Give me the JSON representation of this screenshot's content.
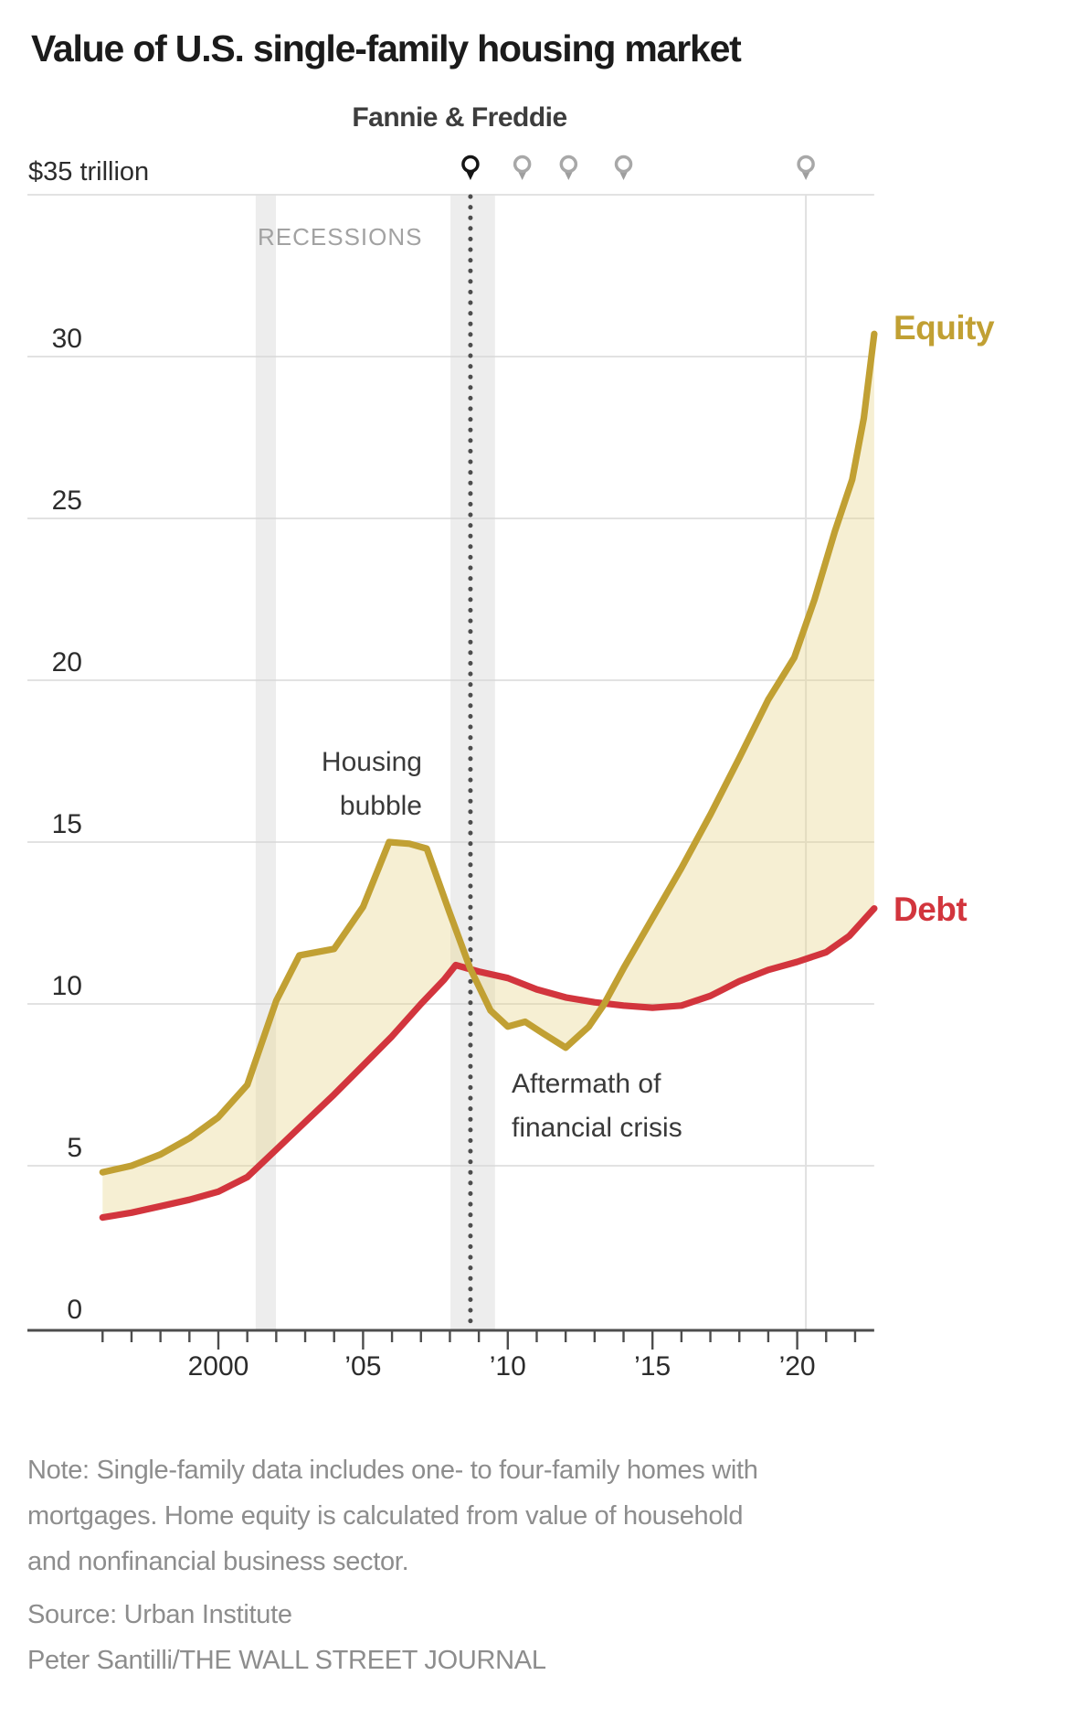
{
  "header": {
    "title": "Value of U.S. single-family housing market"
  },
  "chart": {
    "y_axis_top_label": "$35 trillion",
    "recessions_label": "RECESSIONS",
    "event_label": "Fannie & Freddie",
    "annotations": {
      "bubble_line1": "Housing",
      "bubble_line2": "bubble",
      "aftermath_line1": "Aftermath of",
      "aftermath_line2": "financial crisis"
    },
    "equity_label": "Equity",
    "debt_label": "Debt"
  },
  "chart_data": {
    "type": "area",
    "title": "Value of U.S. single-family housing market",
    "unit": "trillion U.S. dollars",
    "ylim": [
      0,
      35
    ],
    "xlim": [
      1995.93,
      2022.66
    ],
    "grid": "horizontal",
    "y_ticks": [
      30,
      25,
      20,
      15,
      10,
      5,
      0
    ],
    "x_ticks": {
      "major_years": [
        2000,
        2005,
        2010,
        2015,
        2020
      ],
      "labels": [
        "2000",
        "’05",
        "’10",
        "’15",
        "’20"
      ],
      "minor_year_start": 1996,
      "minor_year_end": 2022
    },
    "recession_bands": [
      [
        2001.29,
        2001.99
      ],
      [
        2008.02,
        2009.56
      ]
    ],
    "event_line_year": 2008.71,
    "event_pins": [
      {
        "year": 2008.71,
        "style": "filled"
      },
      {
        "year": 2010.5,
        "style": "outline"
      },
      {
        "year": 2012.1,
        "style": "outline"
      },
      {
        "year": 2014.0,
        "style": "outline"
      },
      {
        "year": 2020.3,
        "style": "outline"
      }
    ],
    "vertical_gridline_year": 2020.3,
    "series": [
      {
        "name": "Equity",
        "color": "#c1a033",
        "fill_above_other": "rgba(233,215,146,0.40)",
        "points": [
          [
            1996,
            4.8
          ],
          [
            1997,
            5.0
          ],
          [
            1998,
            5.35
          ],
          [
            1999,
            5.85
          ],
          [
            2000,
            6.5
          ],
          [
            2001,
            7.5
          ],
          [
            2002,
            10.1
          ],
          [
            2002.8,
            11.5
          ],
          [
            2004,
            11.7
          ],
          [
            2005,
            13.0
          ],
          [
            2005.9,
            15.0
          ],
          [
            2006.6,
            14.95
          ],
          [
            2007.2,
            14.8
          ],
          [
            2008,
            12.8
          ],
          [
            2008.7,
            11.1
          ],
          [
            2009.4,
            9.8
          ],
          [
            2010,
            9.3
          ],
          [
            2010.6,
            9.45
          ],
          [
            2011.2,
            9.1
          ],
          [
            2012,
            8.65
          ],
          [
            2012.8,
            9.3
          ],
          [
            2013.3,
            9.95
          ],
          [
            2014,
            11.1
          ],
          [
            2015,
            12.65
          ],
          [
            2016,
            14.2
          ],
          [
            2017,
            15.85
          ],
          [
            2018,
            17.6
          ],
          [
            2019,
            19.4
          ],
          [
            2019.9,
            20.7
          ],
          [
            2020.6,
            22.5
          ],
          [
            2021.3,
            24.6
          ],
          [
            2021.9,
            26.2
          ],
          [
            2022.3,
            28.1
          ],
          [
            2022.66,
            30.7
          ]
        ]
      },
      {
        "name": "Debt",
        "color": "#d2353d",
        "fill_above_other": "rgba(231,110,100,0.38)",
        "points": [
          [
            1996,
            3.4
          ],
          [
            1997,
            3.55
          ],
          [
            1998,
            3.75
          ],
          [
            1999,
            3.95
          ],
          [
            2000,
            4.2
          ],
          [
            2001,
            4.65
          ],
          [
            2002,
            5.5
          ],
          [
            2003,
            6.35
          ],
          [
            2004,
            7.2
          ],
          [
            2005,
            8.1
          ],
          [
            2006,
            9.0
          ],
          [
            2007,
            10.0
          ],
          [
            2007.8,
            10.75
          ],
          [
            2008.2,
            11.2
          ],
          [
            2009,
            11.0
          ],
          [
            2010,
            10.8
          ],
          [
            2011,
            10.45
          ],
          [
            2012,
            10.2
          ],
          [
            2013,
            10.05
          ],
          [
            2014,
            9.95
          ],
          [
            2015,
            9.88
          ],
          [
            2016,
            9.95
          ],
          [
            2017,
            10.25
          ],
          [
            2018,
            10.7
          ],
          [
            2019,
            11.05
          ],
          [
            2020,
            11.3
          ],
          [
            2021,
            11.6
          ],
          [
            2021.8,
            12.1
          ],
          [
            2022.66,
            12.95
          ]
        ]
      }
    ],
    "colors": {
      "equity": "#c1a033",
      "debt": "#d2353d",
      "equity_fill": "#f8f3df",
      "debt_fill": "#f6d2ce",
      "recession_band": "#ededed",
      "gridline": "#d8d8d8",
      "axis": "#4d4d4d",
      "event_dotted_line": "#4d4d4d"
    }
  },
  "footer": {
    "note_lines": [
      "Note: Single-family data includes one- to four-family homes with",
      "mortgages. Home equity is calculated from value of household",
      "and nonfinancial business sector."
    ],
    "source": "Source: Urban Institute",
    "credit": "Peter Santilli/THE WALL STREET JOURNAL"
  }
}
